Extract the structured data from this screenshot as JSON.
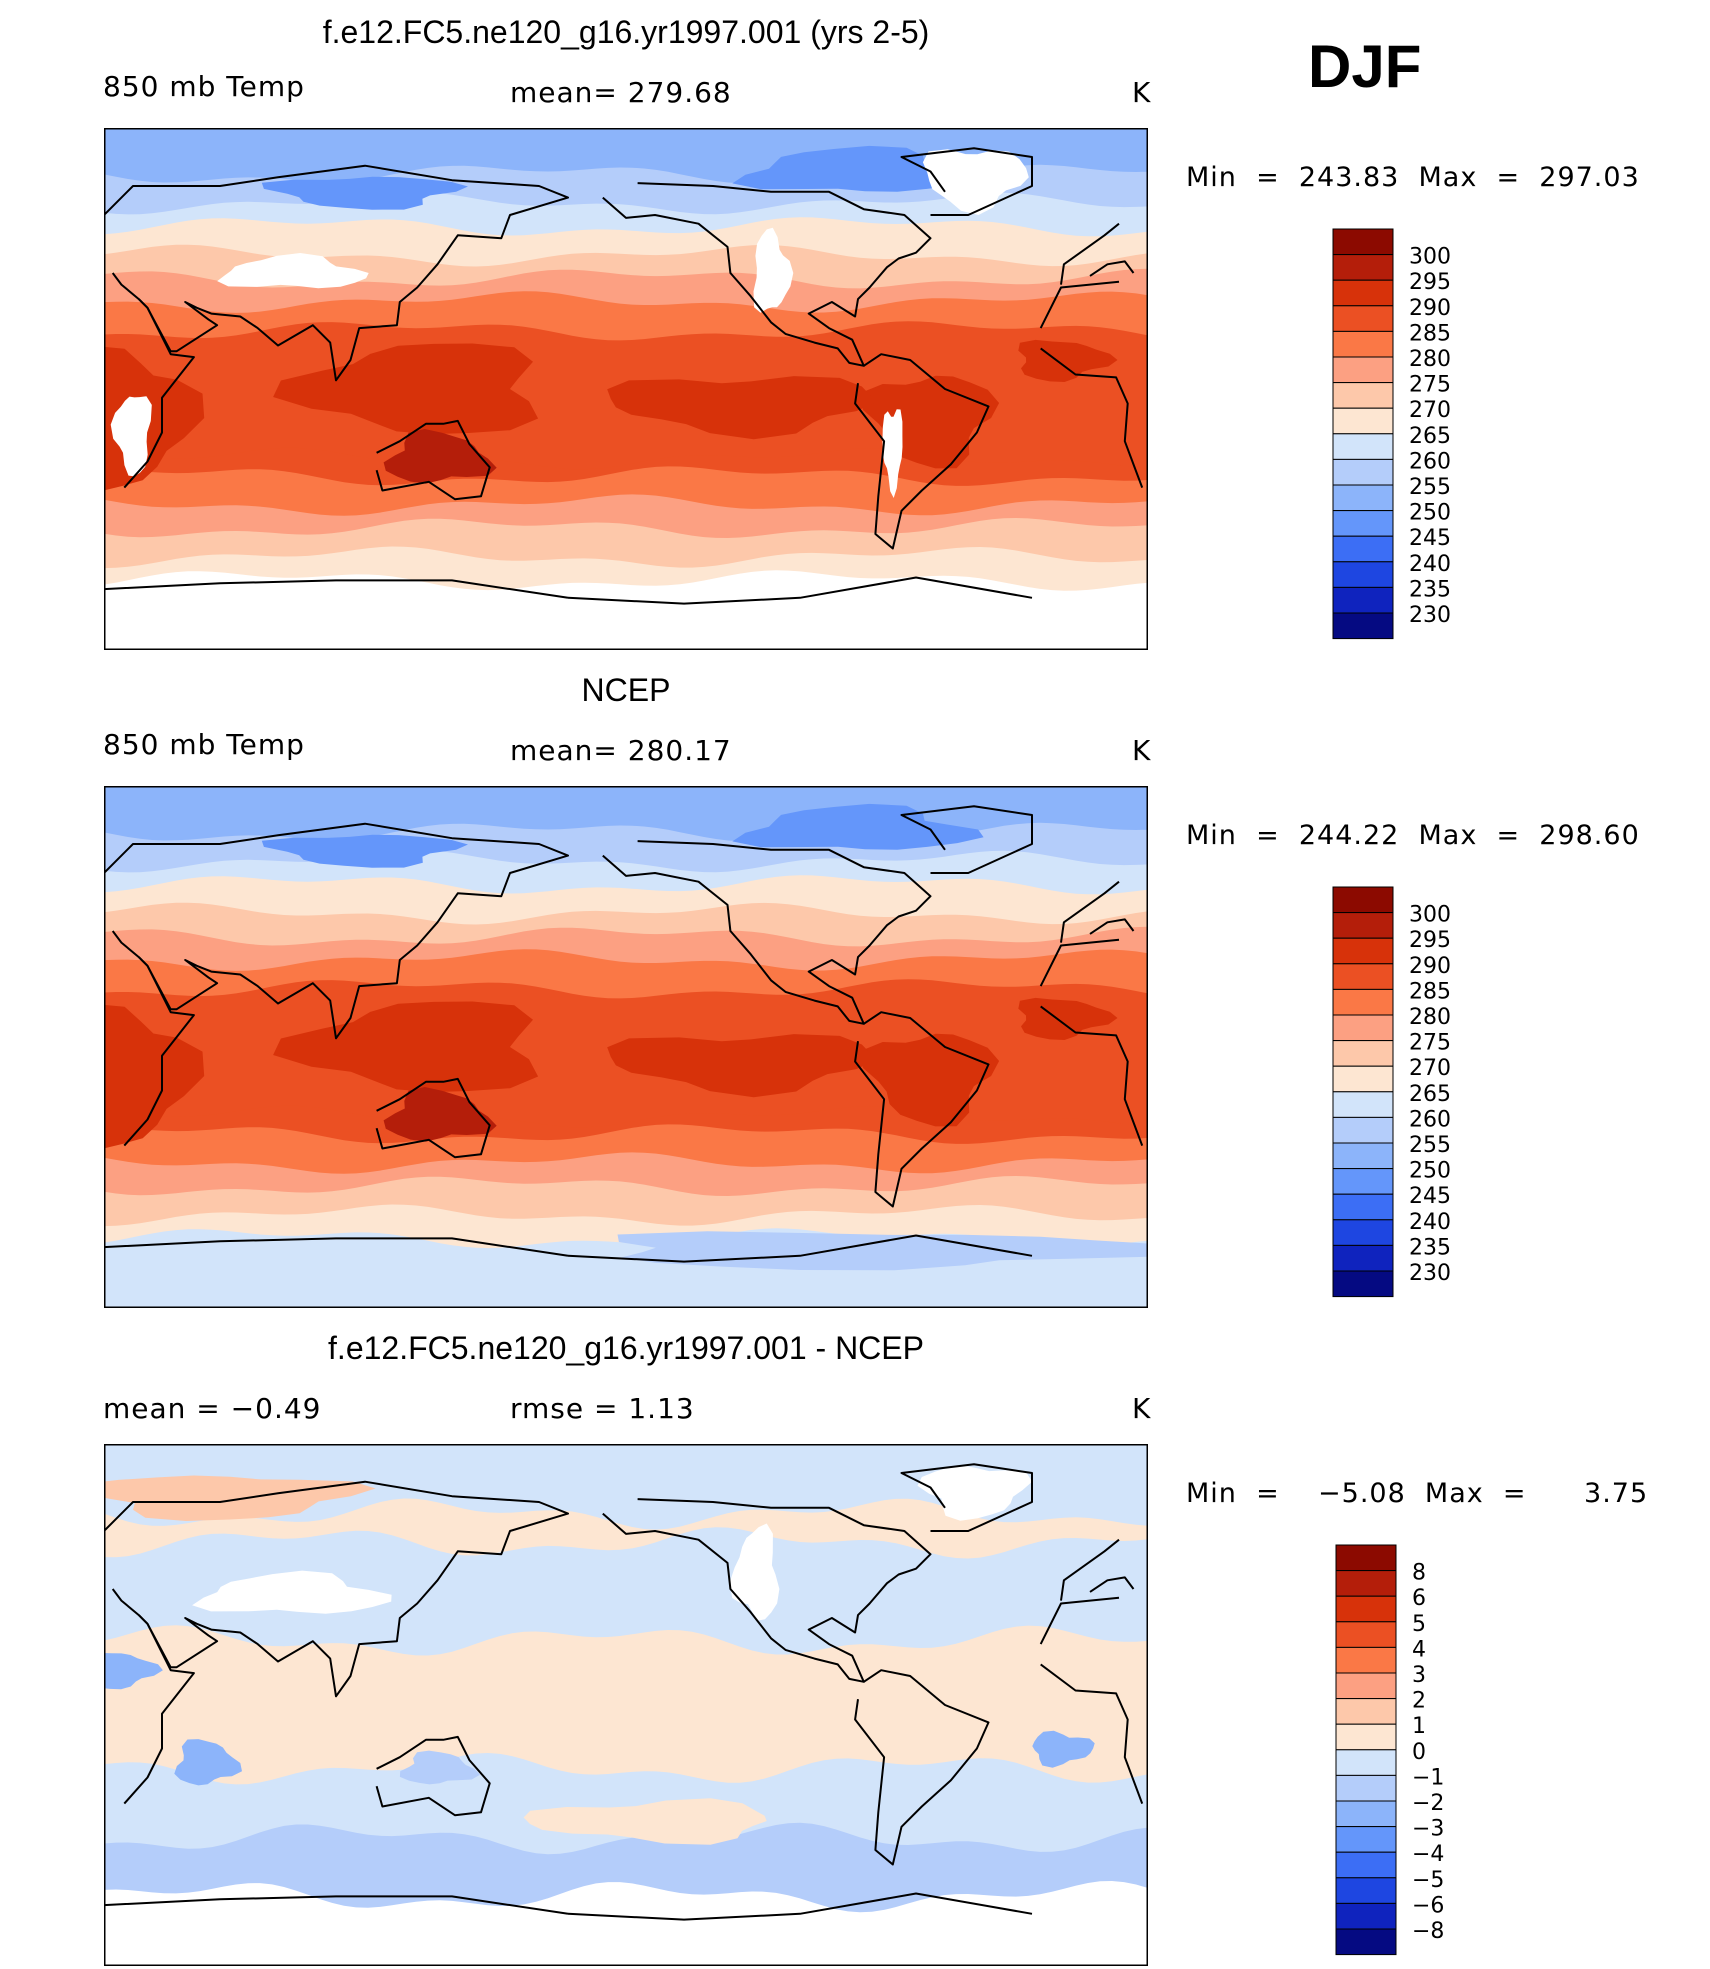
{
  "season_label": "DJF",
  "panels": [
    {
      "title": "f.e12.FC5.ne120_g16.yr1997.001 (yrs 2-5)",
      "left_label": "850 mb Temp",
      "center_label": "mean=  279.68",
      "units": "K",
      "minmax": "Min  =  243.83  Max  =  297.03"
    },
    {
      "title": "NCEP",
      "left_label": "850 mb Temp",
      "center_label": "mean=  280.17",
      "units": "K",
      "minmax": "Min  =  244.22  Max  =  298.60"
    },
    {
      "title": "f.e12.FC5.ne120_g16.yr1997.001 - NCEP",
      "left_label": "mean  =    −0.49",
      "center_label": "rmse  =     1.13",
      "units": "K",
      "minmax": "Min  =    −5.08  Max  =      3.75"
    }
  ],
  "chart_data": [
    {
      "type": "heatmap",
      "title": "f.e12.FC5.ne120_g16.yr1997.001 (yrs 2-5)",
      "subtitle_left": "850 mb Temp",
      "subtitle_center": "mean=  279.68",
      "units": "K",
      "field_stats": {
        "mean": 279.68,
        "min": 243.83,
        "max": 297.03
      },
      "colorbar": {
        "levels": [
          "300",
          "295",
          "290",
          "285",
          "280",
          "275",
          "270",
          "265",
          "260",
          "255",
          "250",
          "245",
          "240",
          "235",
          "230"
        ],
        "colors": [
          "#8c0a00",
          "#b41e0a",
          "#d7320a",
          "#eb5023",
          "#fa7846",
          "#fca082",
          "#fdc8aa",
          "#fde6d2",
          "#d2e4fa",
          "#b4cdfa",
          "#8cb4fa",
          "#6496fa",
          "#3c6ef5",
          "#1e46e1",
          "#0f23be",
          "#050a82"
        ]
      },
      "bands_by_latitude": [
        {
          "lat_top": 90,
          "lat_bottom": 70,
          "level": "250-255"
        },
        {
          "lat_top": 70,
          "lat_bottom": 50,
          "level": "260-270"
        },
        {
          "lat_top": 50,
          "lat_bottom": 30,
          "level": "275-285"
        },
        {
          "lat_top": 30,
          "lat_bottom": -30,
          "level": "285-295"
        },
        {
          "lat_top": -30,
          "lat_bottom": -55,
          "level": "270-285"
        },
        {
          "lat_top": -55,
          "lat_bottom": -90,
          "level": "260-270"
        }
      ]
    },
    {
      "type": "heatmap",
      "title": "NCEP",
      "subtitle_left": "850 mb Temp",
      "subtitle_center": "mean=  280.17",
      "units": "K",
      "field_stats": {
        "mean": 280.17,
        "min": 244.22,
        "max": 298.6
      },
      "colorbar": {
        "levels": [
          "300",
          "295",
          "290",
          "285",
          "280",
          "275",
          "270",
          "265",
          "260",
          "255",
          "250",
          "245",
          "240",
          "235",
          "230"
        ],
        "colors": [
          "#8c0a00",
          "#b41e0a",
          "#d7320a",
          "#eb5023",
          "#fa7846",
          "#fca082",
          "#fdc8aa",
          "#fde6d2",
          "#d2e4fa",
          "#b4cdfa",
          "#8cb4fa",
          "#6496fa",
          "#3c6ef5",
          "#1e46e1",
          "#0f23be",
          "#050a82"
        ]
      },
      "bands_by_latitude": [
        {
          "lat_top": 90,
          "lat_bottom": 70,
          "level": "250-255"
        },
        {
          "lat_top": 70,
          "lat_bottom": 50,
          "level": "260-270"
        },
        {
          "lat_top": 50,
          "lat_bottom": 30,
          "level": "275-285"
        },
        {
          "lat_top": 30,
          "lat_bottom": -30,
          "level": "285-295"
        },
        {
          "lat_top": -30,
          "lat_bottom": -55,
          "level": "270-285"
        },
        {
          "lat_top": -55,
          "lat_bottom": -90,
          "level": "260-265"
        }
      ]
    },
    {
      "type": "heatmap",
      "title": "f.e12.FC5.ne120_g16.yr1997.001 - NCEP",
      "subtitle_left": "mean  =    −0.49",
      "subtitle_center": "rmse  =     1.13",
      "units": "K",
      "field_stats": {
        "mean": -0.49,
        "rmse": 1.13,
        "min": -5.08,
        "max": 3.75
      },
      "colorbar": {
        "levels": [
          "8",
          "6",
          "5",
          "4",
          "3",
          "2",
          "1",
          "0",
          "−1",
          "−2",
          "−3",
          "−4",
          "−5",
          "−6",
          "−8"
        ],
        "colors": [
          "#8c0a00",
          "#b41e0a",
          "#d7320a",
          "#eb5023",
          "#fa7846",
          "#fca082",
          "#fdc8aa",
          "#fde6d2",
          "#d2e4fa",
          "#b4cdfa",
          "#8cb4fa",
          "#6496fa",
          "#3c6ef5",
          "#1e46e1",
          "#0f23be",
          "#050a82"
        ]
      },
      "bands_by_latitude": [
        {
          "lat_top": 90,
          "lat_bottom": 60,
          "level": "0-1"
        },
        {
          "lat_top": 60,
          "lat_bottom": 20,
          "level": "-1-0"
        },
        {
          "lat_top": 20,
          "lat_bottom": -20,
          "level": "0-1"
        },
        {
          "lat_top": -20,
          "lat_bottom": -60,
          "level": "-2--1"
        },
        {
          "lat_top": -60,
          "lat_bottom": -90,
          "level": "-1-0"
        }
      ]
    }
  ]
}
